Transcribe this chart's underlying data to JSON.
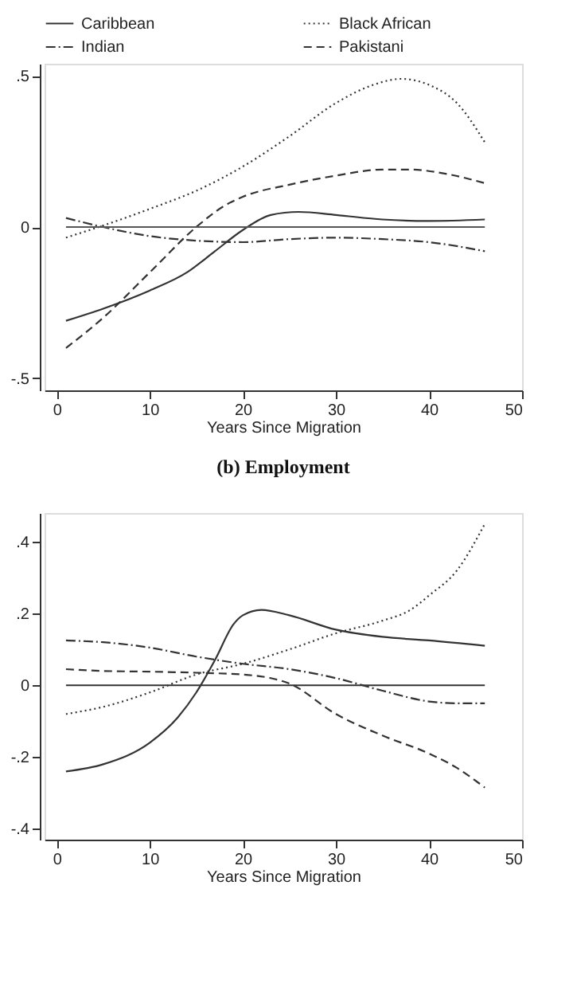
{
  "chart_data": [
    {
      "type": "line",
      "xlabel": "Years Since Migration",
      "xlim": [
        -1.3,
        50
      ],
      "xticks": [
        0,
        10,
        20,
        30,
        40,
        50
      ],
      "ylim": [
        -0.54,
        0.54
      ],
      "yticks": [
        {
          "value": 0.5,
          "label": ".5"
        },
        0,
        {
          "value": -0.5,
          "label": "-.5"
        }
      ],
      "grid": false,
      "legend": "top",
      "ref_lines": [
        {
          "axis": "y",
          "value": 0,
          "color": "#555555"
        }
      ],
      "series": [
        {
          "name": "Caribbean",
          "color": "#333333",
          "line_style": "solid",
          "x": [
            1,
            5,
            10,
            14,
            17,
            20,
            23,
            26,
            30,
            35,
            40,
            46
          ],
          "values": [
            -0.31,
            -0.27,
            -0.21,
            -0.15,
            -0.08,
            -0.01,
            0.04,
            0.05,
            0.04,
            0.025,
            0.02,
            0.025
          ]
        },
        {
          "name": "Black African",
          "color": "#333333",
          "line_style": "dotted",
          "x": [
            1,
            5,
            10,
            15,
            20,
            25,
            30,
            34,
            37,
            40,
            43,
            46
          ],
          "values": [
            -0.035,
            0.005,
            0.06,
            0.12,
            0.2,
            0.3,
            0.41,
            0.47,
            0.49,
            0.47,
            0.41,
            0.28
          ]
        },
        {
          "name": "Indian",
          "color": "#333333",
          "line_style": "dashdot",
          "x": [
            1,
            5,
            10,
            15,
            20,
            25,
            30,
            35,
            40,
            46
          ],
          "values": [
            0.03,
            0.0,
            -0.03,
            -0.045,
            -0.05,
            -0.04,
            -0.035,
            -0.04,
            -0.05,
            -0.08
          ]
        },
        {
          "name": "Pakistani",
          "color": "#333333",
          "line_style": "dashed",
          "x": [
            1,
            5,
            10,
            15,
            18,
            20,
            25,
            30,
            35,
            38,
            42,
            46
          ],
          "values": [
            -0.4,
            -0.3,
            -0.15,
            0.0,
            0.07,
            0.1,
            0.14,
            0.17,
            0.19,
            0.19,
            0.175,
            0.145
          ]
        }
      ]
    },
    {
      "type": "line",
      "title": "(b) Employment",
      "xlabel": "Years Since Migration",
      "xlim": [
        -1.3,
        50
      ],
      "xticks": [
        0,
        10,
        20,
        30,
        40,
        50
      ],
      "ylim": [
        -0.43,
        0.48
      ],
      "yticks": [
        {
          "value": 0.4,
          "label": ".4"
        },
        {
          "value": 0.2,
          "label": ".2"
        },
        0,
        {
          "value": -0.2,
          "label": "-.2"
        },
        {
          "value": -0.4,
          "label": "-.4"
        }
      ],
      "grid": false,
      "legend": "top",
      "ref_lines": [
        {
          "axis": "y",
          "value": 0,
          "color": "#333333"
        }
      ],
      "series": [
        {
          "name": "Caribbean",
          "color": "#333333",
          "line_style": "solid",
          "x": [
            1,
            5,
            10,
            13,
            15,
            17,
            19,
            20,
            22,
            25,
            30,
            35,
            40,
            46
          ],
          "values": [
            -0.24,
            -0.22,
            -0.16,
            -0.09,
            -0.02,
            0.07,
            0.17,
            0.195,
            0.21,
            0.195,
            0.155,
            0.135,
            0.125,
            0.11
          ]
        },
        {
          "name": "Black African",
          "color": "#333333",
          "line_style": "dotted",
          "x": [
            1,
            5,
            10,
            15,
            20,
            25,
            30,
            35,
            38,
            40,
            43,
            46
          ],
          "values": [
            -0.08,
            -0.06,
            -0.02,
            0.03,
            0.06,
            0.1,
            0.145,
            0.18,
            0.21,
            0.25,
            0.32,
            0.45
          ]
        },
        {
          "name": "Indian",
          "color": "#333333",
          "line_style": "dashdot",
          "x": [
            1,
            5,
            10,
            15,
            20,
            25,
            30,
            35,
            40,
            43,
            46
          ],
          "values": [
            0.125,
            0.12,
            0.105,
            0.08,
            0.06,
            0.045,
            0.02,
            -0.015,
            -0.045,
            -0.05,
            -0.05
          ]
        },
        {
          "name": "Pakistani",
          "color": "#333333",
          "line_style": "dashed",
          "x": [
            1,
            5,
            10,
            15,
            20,
            23,
            25,
            30,
            35,
            40,
            43,
            46
          ],
          "values": [
            0.045,
            0.04,
            0.038,
            0.035,
            0.03,
            0.02,
            0.005,
            -0.08,
            -0.14,
            -0.19,
            -0.23,
            -0.285
          ]
        }
      ]
    }
  ]
}
